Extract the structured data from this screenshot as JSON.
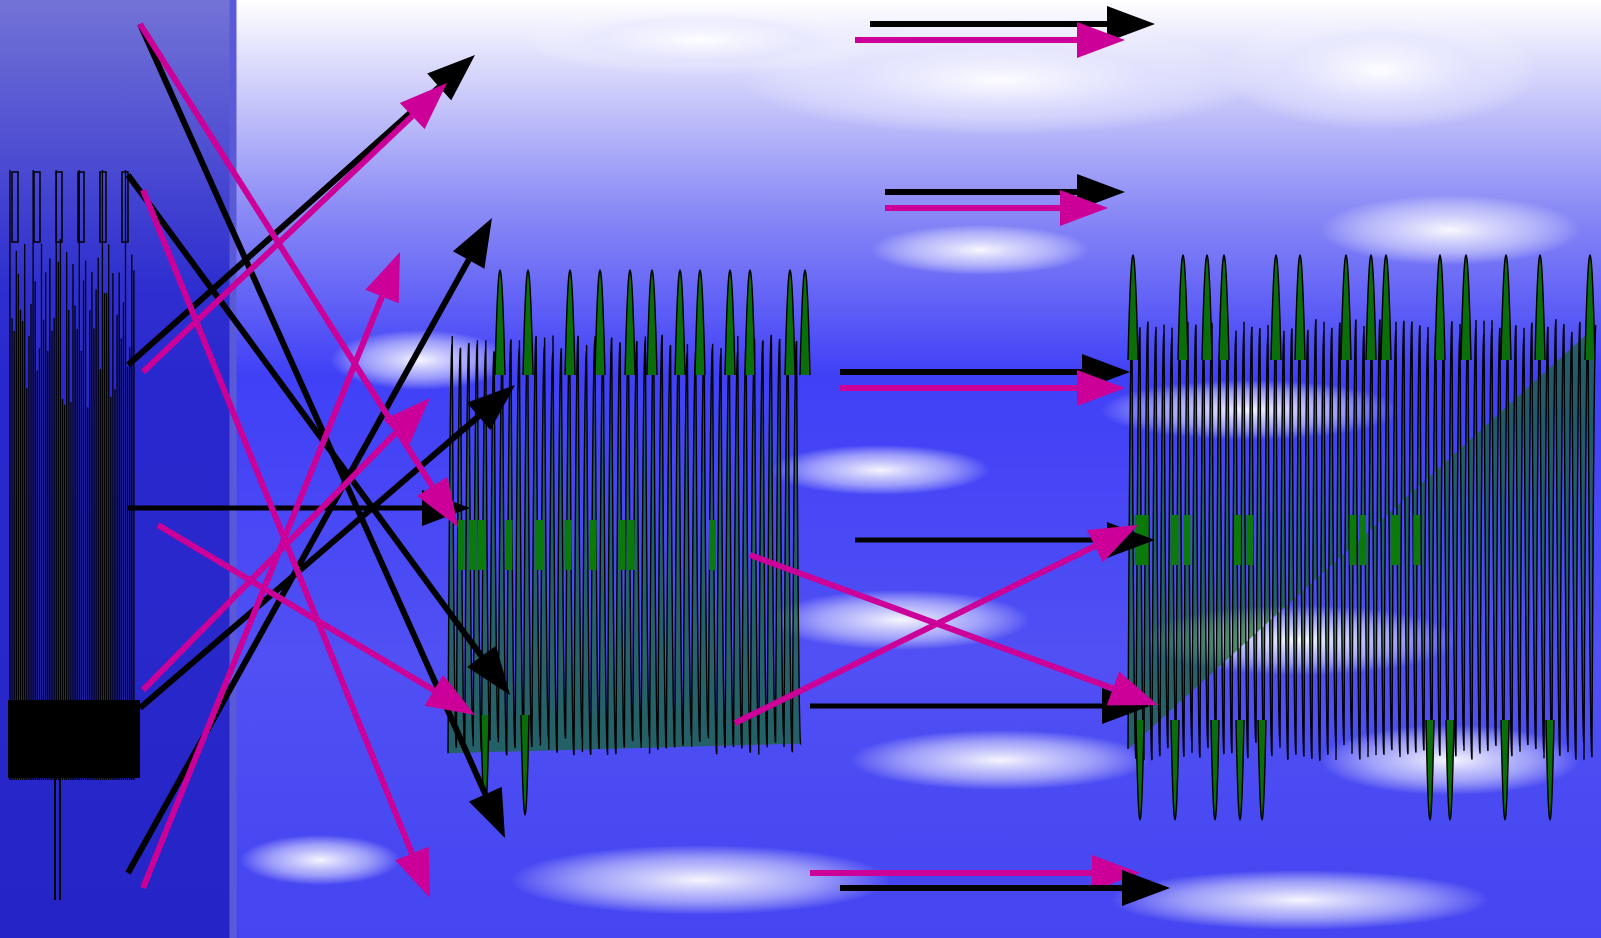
{
  "colors": {
    "sky_blue": "#3f3ff7",
    "sky_light": "#eeeefc",
    "cloud_white": "#ffffff",
    "left_panel": "#2424c8",
    "left_panel_border": "#5050d8",
    "magenta_arrow": "#cc0099",
    "black_arrow": "#000000",
    "wave_fill_green": "#0a6e0a",
    "wave_stroke": "#000000"
  },
  "icons": {
    "arrowhead": "triangle-arrowhead-icon"
  },
  "waveform_blocks": [
    "waveform-block-left",
    "waveform-block-middle",
    "waveform-block-right"
  ],
  "arrow_groups": [
    "crossing-arrows-left",
    "parallel-arrows-center",
    "crossing-arrows-center"
  ]
}
